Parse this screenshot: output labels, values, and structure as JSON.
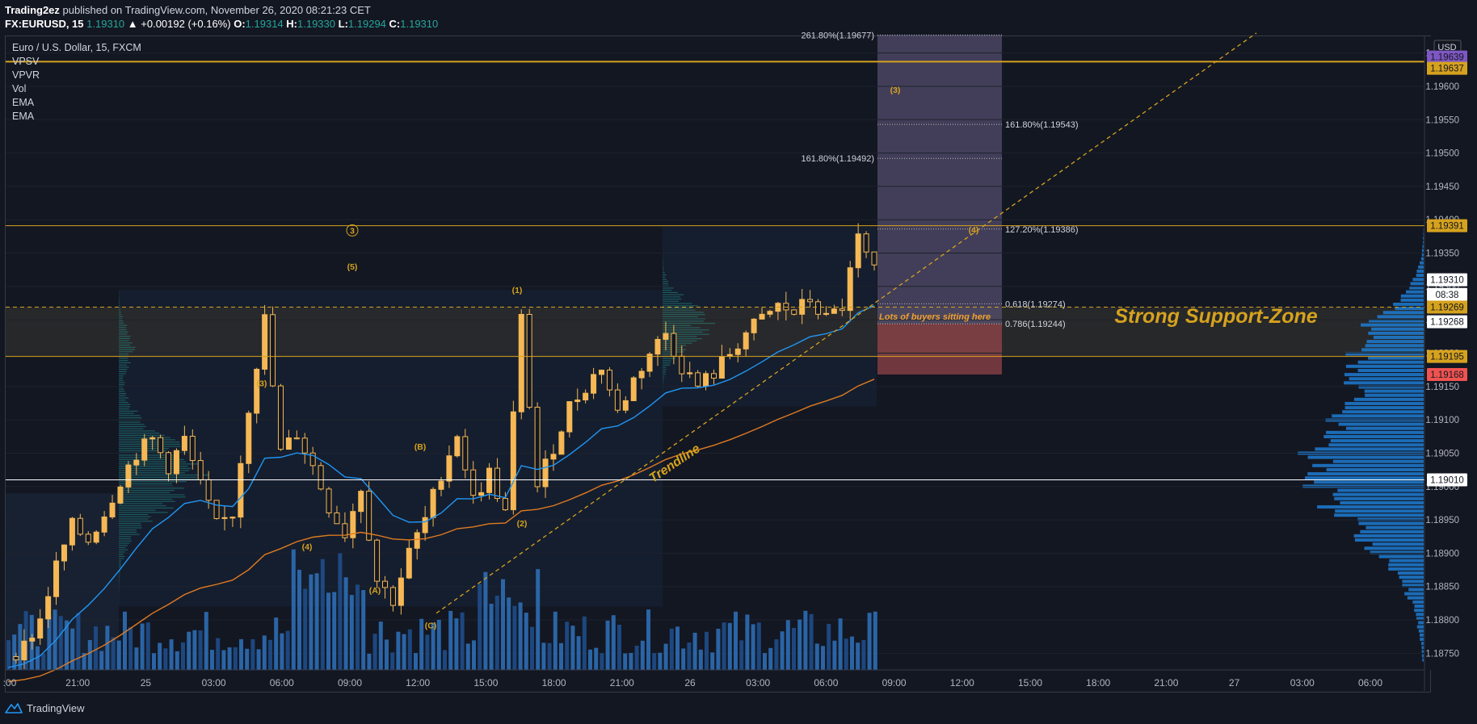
{
  "header": {
    "author": "Trading2ez",
    "published_text": "published on TradingView.com, November 26, 2020 08:21:23 CET",
    "symbol": "FX:EURUSD, 15",
    "last": "1.19310",
    "change": "▲ +0.00192 (+0.16%)",
    "o_label": "O:",
    "o": "1.19314",
    "h_label": "H:",
    "h": "1.19330",
    "l_label": "L:",
    "l": "1.19294",
    "c_label": "C:",
    "c": "1.19310"
  },
  "legend": {
    "title": "Euro / U.S. Dollar, 15, FXCM",
    "indicators": [
      "VPSV",
      "VPVR",
      "Vol",
      "EMA",
      "EMA"
    ]
  },
  "footer": {
    "brand": "TradingView"
  },
  "colors": {
    "background": "#131722",
    "candle": "#f5b855",
    "gold_line": "#d6a21e",
    "ema_fast": "#2196f3",
    "ema_slow": "#e07b22",
    "volume": "#2e6db4",
    "volume_profile": "#1f7bd1",
    "white_line": "#ffffff",
    "fib_box": "#6a5f86",
    "fib_box_bottom": "#b04c53"
  },
  "chart_data": {
    "type": "candlestick",
    "currency": "USD",
    "ylim": [
      1.18725,
      1.19675
    ],
    "y_ticks": [
      "1.18750",
      "1.18800",
      "1.18850",
      "1.18900",
      "1.18950",
      "1.19000",
      "1.19050",
      "1.19100",
      "1.19150",
      "1.19200",
      "1.19250",
      "1.19300",
      "1.19350",
      "1.19400",
      "1.19450",
      "1.19500",
      "1.19550",
      "1.19600",
      "1.19650"
    ],
    "x_ticks": [
      ":00",
      "21:00",
      "25",
      "03:00",
      "06:00",
      "09:00",
      "12:00",
      "15:00",
      "18:00",
      "21:00",
      "26",
      "03:00",
      "06:00",
      "09:00",
      "12:00",
      "15:00",
      "18:00",
      "21:00",
      "27",
      "03:00",
      "06:00"
    ],
    "price_badges": [
      {
        "value": "1.19639",
        "color": "#7e57c2"
      },
      {
        "value": "1.19637",
        "color": "#d6a21e"
      },
      {
        "value": "1.19391",
        "color": "#d6a21e"
      },
      {
        "value": "1.19310",
        "color": "#ffffff"
      },
      {
        "value": "08:38",
        "color": "#ffffff"
      },
      {
        "value": "1.19269",
        "color": "#d6a21e"
      },
      {
        "value": "1.19268",
        "color": "#ffffff"
      },
      {
        "value": "1.19195",
        "color": "#d6a21e"
      },
      {
        "value": "1.19168",
        "color": "#ef5350"
      },
      {
        "value": "1.19010",
        "color": "#ffffff"
      }
    ],
    "horizontal_lines": [
      {
        "price": 1.19637,
        "color": "gold",
        "style": "solid",
        "width": 2
      },
      {
        "price": 1.19391,
        "color": "gold",
        "style": "solid"
      },
      {
        "price": 1.19269,
        "color": "gold",
        "style": "dashed"
      },
      {
        "price": 1.19195,
        "color": "gold",
        "style": "solid"
      },
      {
        "price": 1.1901,
        "color": "white",
        "style": "solid"
      }
    ],
    "fib_levels": [
      {
        "label": "261.80%(1.19677)",
        "price": 1.19677
      },
      {
        "label": "161.80%(1.19543)",
        "price": 1.19543
      },
      {
        "label": "161.80%(1.19492)",
        "price": 1.19492
      },
      {
        "label": "127.20%(1.19386)",
        "price": 1.19386
      },
      {
        "label": "0.618(1.19274)",
        "price": 1.19274
      },
      {
        "label": "0.786(1.19244)",
        "price": 1.19244
      }
    ],
    "wave_labels": [
      "3",
      "(5)",
      "(1)",
      "(3)",
      "(B)",
      "(4)",
      "(A)",
      "(2)",
      "(C)",
      "(3)",
      "(4)"
    ],
    "annotations": {
      "support_zone": "Strong Support-Zone",
      "buyers": "Lots of buyers sitting here",
      "trendline": "Trendline"
    },
    "close_path": [
      1.18745,
      1.1876,
      1.188,
      1.1888,
      1.1894,
      1.1892,
      1.1896,
      1.1901,
      1.1905,
      1.1907,
      1.1903,
      1.1907,
      1.19,
      1.1894,
      1.1896,
      1.1912,
      1.1925,
      1.1905,
      1.1908,
      1.1903,
      1.1897,
      1.1893,
      1.19,
      1.1886,
      1.1883,
      1.189,
      1.1895,
      1.1902,
      1.1908,
      1.1898,
      1.1902,
      1.1896,
      1.1925,
      1.19,
      1.1906,
      1.1912,
      1.1915,
      1.1918,
      1.1911,
      1.1916,
      1.192,
      1.1923,
      1.1918,
      1.1915,
      1.1917,
      1.192,
      1.1923,
      1.1925,
      1.1927,
      1.1926,
      1.1928,
      1.1925,
      1.1927,
      1.1937,
      1.1932
    ]
  }
}
